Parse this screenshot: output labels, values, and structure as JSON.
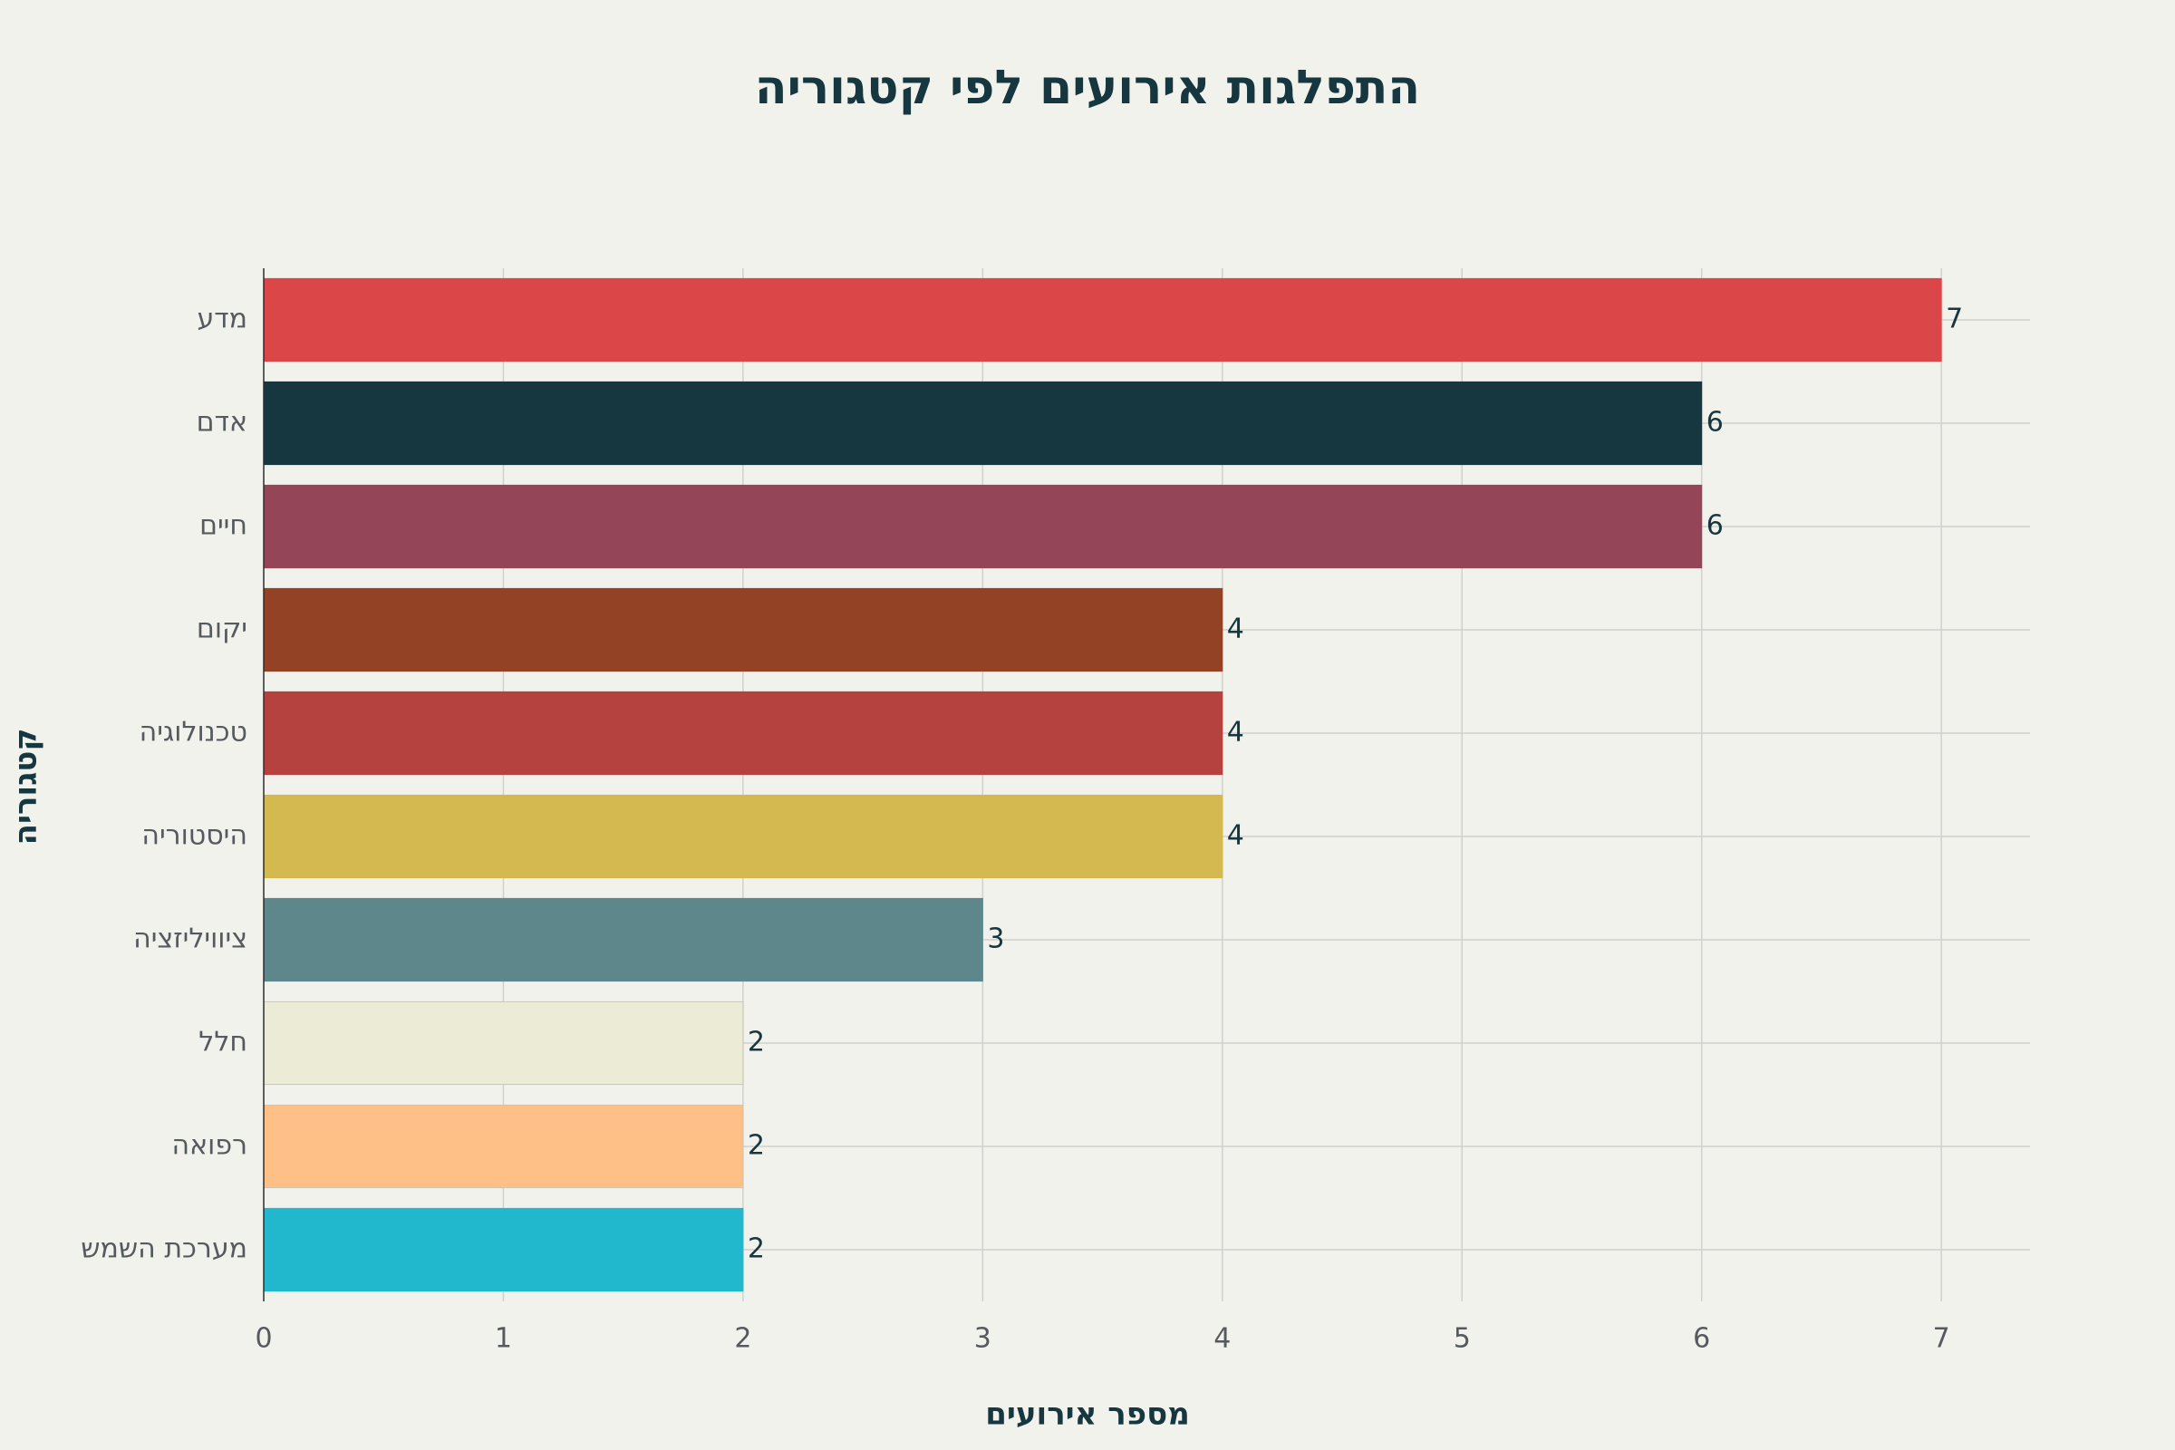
{
  "chart_data": {
    "type": "bar",
    "orientation": "horizontal",
    "title": "התפלגות אירועים לפי קטגוריה",
    "xlabel": "מספר אירועים",
    "ylabel": "קטגוריה",
    "xlim": [
      0,
      7.37
    ],
    "xticks": [
      0,
      1,
      2,
      3,
      4,
      5,
      6,
      7
    ],
    "grid": true,
    "categories": [
      "מדע",
      "אדם",
      "חיים",
      "יקום",
      "טכנולוגיה",
      "היסטוריה",
      "ציוויליזציה",
      "חלל",
      "רפואה",
      "מערכת השמש"
    ],
    "values": [
      7,
      6,
      6,
      4,
      4,
      4,
      3,
      2,
      2,
      2
    ],
    "colors": [
      "#db4649",
      "#163640",
      "#944557",
      "#934225",
      "#b64240",
      "#d3b94f",
      "#5d878b",
      "#ecebd6",
      "#ffc088",
      "#21b8ce"
    ],
    "data_labels": [
      "7",
      "6",
      "6",
      "4",
      "4",
      "4",
      "3",
      "2",
      "2",
      "2"
    ]
  }
}
